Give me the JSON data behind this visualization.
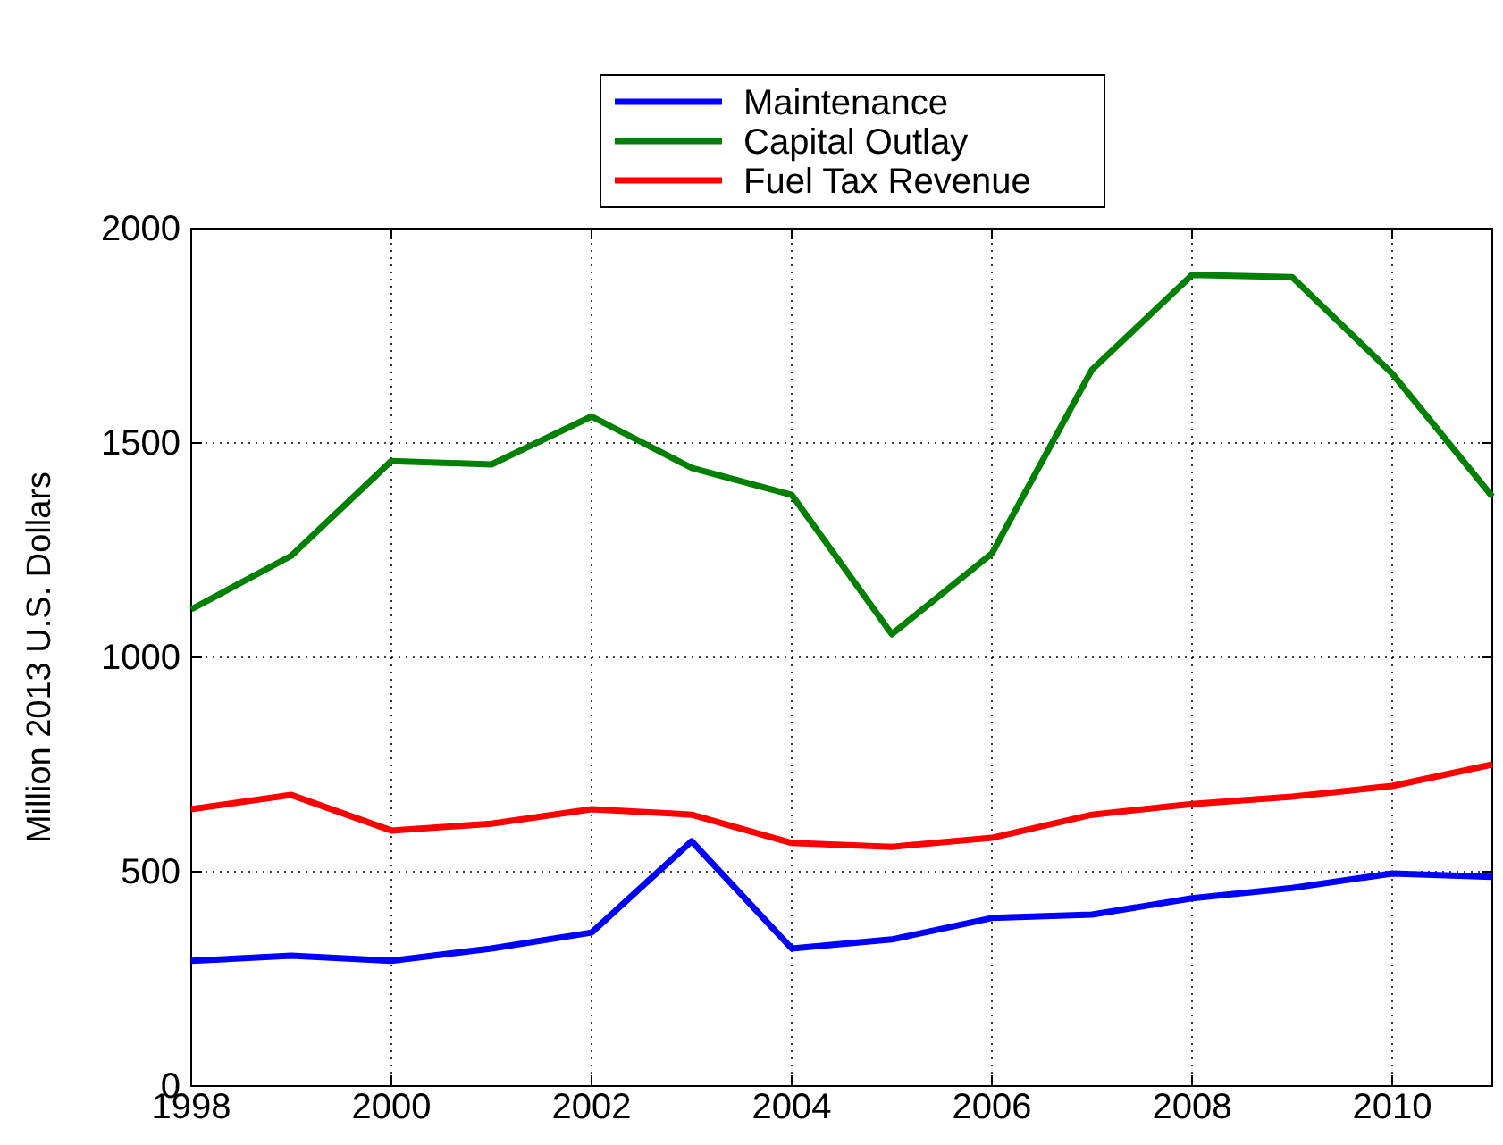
{
  "chart_data": {
    "type": "line",
    "ylabel": "Million 2013 U.S. Dollars",
    "x": [
      1998,
      1999,
      2000,
      2001,
      2002,
      2003,
      2004,
      2005,
      2006,
      2007,
      2008,
      2009,
      2010,
      2011
    ],
    "series": [
      {
        "name": "Maintenance",
        "color": "#0000ff",
        "values": [
          292,
          304,
          292,
          321,
          358,
          571,
          321,
          342,
          392,
          400,
          438,
          462,
          496,
          488
        ]
      },
      {
        "name": "Capital Outlay",
        "color": "#008000",
        "values": [
          1112,
          1237,
          1458,
          1450,
          1562,
          1442,
          1379,
          1054,
          1242,
          1671,
          1892,
          1887,
          1662,
          1375
        ]
      },
      {
        "name": "Fuel Tax Revenue",
        "color": "#ff0000",
        "values": [
          646,
          679,
          596,
          612,
          646,
          633,
          567,
          558,
          579,
          633,
          658,
          675,
          700,
          750
        ]
      }
    ],
    "xlim": [
      1998,
      2011
    ],
    "xticks": [
      1998,
      2000,
      2002,
      2004,
      2006,
      2008,
      2010
    ],
    "ylim": [
      0,
      2000
    ],
    "yticks": [
      0,
      500,
      1000,
      1500,
      2000
    ],
    "grid": true,
    "legend": "top",
    "line_style": "solid",
    "marker": "none"
  }
}
